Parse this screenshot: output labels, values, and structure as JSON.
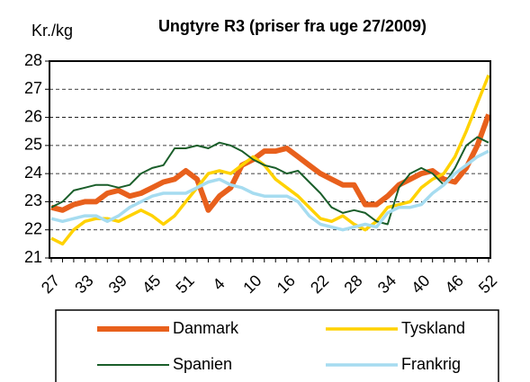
{
  "chart_data": {
    "type": "line",
    "title": "Ungtyre R3 (priser fra uge 27/2009)",
    "y_label": "Kr./kg",
    "categories": [
      "27",
      null,
      null,
      "33",
      null,
      null,
      "39",
      null,
      null,
      "45",
      null,
      null,
      "51",
      null,
      null,
      "4",
      null,
      null,
      "10",
      null,
      null,
      "16",
      null,
      null,
      "22",
      null,
      null,
      "28",
      null,
      null,
      "34",
      null,
      null,
      "40",
      null,
      null,
      "46",
      null,
      null,
      "52"
    ],
    "ylim": [
      21,
      28
    ],
    "yticks": [
      21,
      22,
      23,
      24,
      25,
      26,
      27,
      28
    ],
    "grid": true,
    "legend": "bottom",
    "series": [
      {
        "name": "Danmark",
        "color": "#e8601c",
        "values": [
          22.8,
          22.7,
          22.9,
          23.0,
          23.0,
          23.3,
          23.4,
          23.2,
          23.3,
          23.5,
          23.7,
          23.8,
          24.1,
          23.8,
          22.7,
          23.2,
          23.5,
          24.3,
          24.5,
          24.8,
          24.8,
          24.9,
          24.6,
          24.3,
          24.0,
          23.8,
          23.6,
          23.6,
          22.9,
          22.9,
          23.2,
          23.6,
          23.8,
          24.0,
          24.1,
          23.8,
          23.7,
          24.2,
          25.0,
          26.1
        ]
      },
      {
        "name": "Tyskland",
        "color": "#ffd200",
        "values": [
          21.7,
          21.5,
          22.0,
          22.3,
          22.4,
          22.4,
          22.3,
          22.5,
          22.7,
          22.5,
          22.2,
          22.5,
          23.0,
          23.5,
          24.0,
          24.1,
          24.0,
          24.3,
          24.6,
          24.3,
          23.8,
          23.5,
          23.2,
          22.8,
          22.4,
          22.3,
          22.5,
          22.2,
          22.0,
          22.3,
          22.8,
          22.9,
          23.0,
          23.5,
          23.8,
          24.0,
          24.6,
          25.5,
          26.5,
          27.5
        ]
      },
      {
        "name": "Spanien",
        "color": "#1a5e2a",
        "values": [
          22.8,
          23.0,
          23.4,
          23.5,
          23.6,
          23.6,
          23.5,
          23.6,
          24.0,
          24.2,
          24.3,
          24.9,
          24.9,
          25.0,
          24.9,
          25.1,
          25.0,
          24.8,
          24.5,
          24.3,
          24.2,
          24.0,
          24.1,
          23.7,
          23.3,
          22.8,
          22.6,
          22.7,
          22.6,
          22.3,
          22.2,
          23.5,
          24.0,
          24.2,
          24.0,
          23.6,
          24.2,
          25.0,
          25.3,
          25.1
        ]
      },
      {
        "name": "Frankrig",
        "color": "#a6dcf0",
        "values": [
          22.4,
          22.3,
          22.4,
          22.5,
          22.5,
          22.3,
          22.5,
          22.8,
          23.0,
          23.2,
          23.3,
          23.3,
          23.3,
          23.5,
          23.7,
          23.8,
          23.6,
          23.5,
          23.3,
          23.2,
          23.2,
          23.2,
          23.0,
          22.5,
          22.2,
          22.1,
          22.0,
          22.1,
          22.2,
          22.1,
          22.6,
          22.8,
          22.8,
          22.9,
          23.3,
          23.6,
          24.0,
          24.3,
          24.6,
          24.8
        ]
      }
    ]
  }
}
